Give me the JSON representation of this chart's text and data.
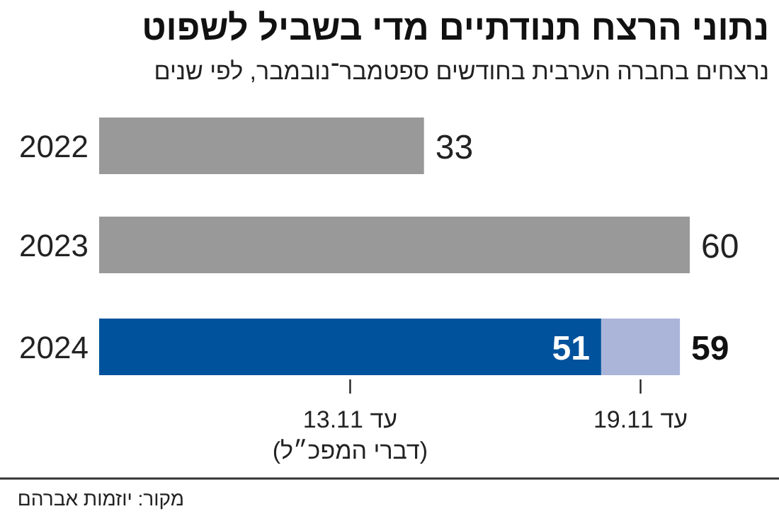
{
  "chart_data": {
    "type": "bar",
    "orientation": "horizontal",
    "stacked": true,
    "title": "נתוני הרצח תנודתיים מדי בשביל לשפוט",
    "subtitle": "נרצחים בחברה הערבית בחודשים ספטמבר־נובמבר, לפי שנים",
    "categories": [
      "2022",
      "2023",
      "2024"
    ],
    "series": [
      {
        "colors": [
          "#999999",
          "#999999",
          "#00529c"
        ],
        "values": [
          33,
          60,
          51
        ],
        "value_labels": [
          "33",
          "60",
          "51"
        ]
      },
      {
        "color": "#abb5da",
        "values": [
          null,
          null,
          8
        ]
      }
    ],
    "totals": [
      null,
      null,
      "59"
    ],
    "annotations": [
      "עד 13.11\n(דברי המפכ״ל)",
      {
        "text": "עד 19.11",
        "x": 59,
        "y": "2024"
      },
      "מקור: יוזמות אברהם"
    ]
  }
}
